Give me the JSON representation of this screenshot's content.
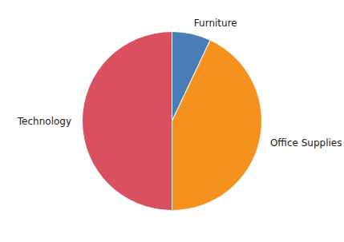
{
  "chart_data": {
    "type": "pie",
    "categories": [
      "Furniture",
      "Office Supplies",
      "Technology"
    ],
    "values": [
      7.0,
      43.0,
      50.0
    ],
    "colors": [
      "#4a7cb5",
      "#f5921e",
      "#d95060"
    ]
  }
}
